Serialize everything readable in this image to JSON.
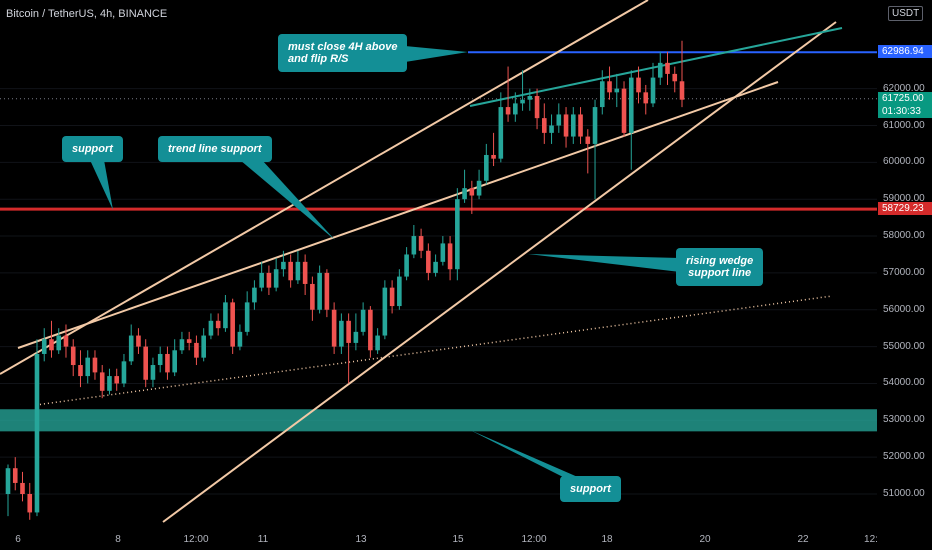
{
  "header": {
    "symbol": "Bitcoin / TetherUS, 4h, BINANCE",
    "currency": "USDT"
  },
  "colors": {
    "background": "#000000",
    "candle_up": "#26a69a",
    "candle_down": "#ef5350",
    "trendline": "#f2c9a6",
    "resistance": "#2962ff",
    "support_line": "#d42b2b",
    "support_zone": "#26a69a",
    "bubble": "#138f96"
  },
  "price_axis": {
    "ticks": [
      "51000.00",
      "52000.00",
      "53000.00",
      "54000.00",
      "55000.00",
      "56000.00",
      "57000.00",
      "58000.00",
      "59000.00",
      "60000.00",
      "61000.00",
      "62000.00"
    ],
    "labels": [
      {
        "text": "62986.94",
        "price": 62986.94,
        "color": "#2962ff"
      },
      {
        "text": "61725.00",
        "price": 61725.0,
        "color": "#089981"
      },
      {
        "text": "01:30:33",
        "price": 61370.0,
        "color": "#089981"
      },
      {
        "text": "58729.23",
        "price": 58729.23,
        "color": "#d42b2b"
      }
    ]
  },
  "time_axis": {
    "ticks": [
      "6",
      "8",
      "12:00",
      "11",
      "13",
      "15",
      "12:00",
      "18",
      "20",
      "22",
      "12:"
    ]
  },
  "annotations": {
    "must_close": {
      "line1": "must close 4H above",
      "line2": "and flip R/S"
    },
    "support_left": "support",
    "trend_line_support": "trend line support",
    "rising_wedge": {
      "line1": "rising wedge",
      "line2": "support line"
    },
    "support_bottom": "support"
  },
  "chart_data": {
    "type": "candlestick",
    "title": "Bitcoin / TetherUS, 4h, BINANCE",
    "ylim": [
      50300,
      63700
    ],
    "levels": {
      "resistance": 62986.94,
      "last_price": 61725.0,
      "support": 58729.23,
      "support_zone": [
        52700,
        53300
      ]
    },
    "candles": [
      [
        51000,
        51700,
        51800,
        50400
      ],
      [
        51700,
        51300,
        52000,
        51100
      ],
      [
        51300,
        51000,
        51600,
        50800
      ],
      [
        51000,
        50500,
        51300,
        50300
      ],
      [
        50500,
        54800,
        55200,
        50400
      ],
      [
        54800,
        55200,
        55500,
        54600
      ],
      [
        55200,
        54900,
        55700,
        54700
      ],
      [
        54900,
        55300,
        55500,
        54800
      ],
      [
        55300,
        55000,
        55600,
        54700
      ],
      [
        55000,
        54500,
        55200,
        54200
      ],
      [
        54500,
        54200,
        54900,
        53900
      ],
      [
        54200,
        54700,
        54900,
        54000
      ],
      [
        54700,
        54300,
        54900,
        54100
      ],
      [
        54300,
        53800,
        54500,
        53600
      ],
      [
        53800,
        54200,
        54400,
        53700
      ],
      [
        54200,
        54000,
        54400,
        53800
      ],
      [
        54000,
        54600,
        54800,
        53900
      ],
      [
        54600,
        55300,
        55600,
        54500
      ],
      [
        55300,
        55000,
        55500,
        54800
      ],
      [
        55000,
        54100,
        55200,
        53900
      ],
      [
        54100,
        54500,
        54700,
        53900
      ],
      [
        54500,
        54800,
        55000,
        54300
      ],
      [
        54800,
        54300,
        55000,
        54100
      ],
      [
        54300,
        54900,
        55200,
        54200
      ],
      [
        54900,
        55200,
        55400,
        54800
      ],
      [
        55200,
        55100,
        55400,
        54900
      ],
      [
        55100,
        54700,
        55300,
        54500
      ],
      [
        54700,
        55300,
        55500,
        54600
      ],
      [
        55300,
        55700,
        55900,
        55200
      ],
      [
        55700,
        55500,
        55900,
        55300
      ],
      [
        55500,
        56200,
        56400,
        55400
      ],
      [
        56200,
        55000,
        56300,
        54800
      ],
      [
        55000,
        55400,
        55600,
        54900
      ],
      [
        55400,
        56200,
        56500,
        55300
      ],
      [
        56200,
        56600,
        56800,
        56000
      ],
      [
        56600,
        57000,
        57300,
        56500
      ],
      [
        57000,
        56600,
        57200,
        56400
      ],
      [
        56600,
        57100,
        57400,
        56500
      ],
      [
        57100,
        57300,
        57600,
        56900
      ],
      [
        57300,
        56800,
        57500,
        56600
      ],
      [
        56800,
        57300,
        57600,
        56700
      ],
      [
        57300,
        56700,
        57500,
        56400
      ],
      [
        56700,
        56000,
        56900,
        55700
      ],
      [
        56000,
        57000,
        57200,
        55900
      ],
      [
        57000,
        56000,
        57100,
        55800
      ],
      [
        56000,
        55000,
        56200,
        54800
      ],
      [
        55000,
        55700,
        55900,
        54800
      ],
      [
        55700,
        55100,
        55900,
        54000
      ],
      [
        55100,
        55400,
        55900,
        54900
      ],
      [
        55400,
        56000,
        56200,
        55300
      ],
      [
        56000,
        54900,
        56100,
        54700
      ],
      [
        54900,
        55300,
        55500,
        54800
      ],
      [
        55300,
        56600,
        56800,
        55200
      ],
      [
        56600,
        56100,
        56800,
        55900
      ],
      [
        56100,
        56900,
        57100,
        56000
      ],
      [
        56900,
        57500,
        57700,
        56800
      ],
      [
        57500,
        58000,
        58300,
        57400
      ],
      [
        58000,
        57600,
        58200,
        57400
      ],
      [
        57600,
        57000,
        57800,
        56800
      ],
      [
        57000,
        57300,
        57500,
        56900
      ],
      [
        57300,
        57800,
        58000,
        57200
      ],
      [
        57800,
        57100,
        58000,
        56800
      ],
      [
        57100,
        59000,
        59300,
        56800
      ],
      [
        59000,
        59300,
        59800,
        58900
      ],
      [
        59300,
        59100,
        59500,
        58600
      ],
      [
        59100,
        59500,
        59800,
        59000
      ],
      [
        59500,
        60200,
        60500,
        59400
      ],
      [
        60200,
        60100,
        60800,
        59900
      ],
      [
        60100,
        61500,
        61900,
        60000
      ],
      [
        61500,
        61300,
        62600,
        61100
      ],
      [
        61300,
        61600,
        61900,
        61100
      ],
      [
        61600,
        61700,
        62500,
        61400
      ],
      [
        61700,
        61800,
        62000,
        61400
      ],
      [
        61800,
        61200,
        62000,
        60900
      ],
      [
        61200,
        60800,
        61600,
        60500
      ],
      [
        60800,
        61000,
        61300,
        60500
      ],
      [
        61000,
        61300,
        61600,
        60800
      ],
      [
        61300,
        60700,
        61500,
        60400
      ],
      [
        60700,
        61300,
        61500,
        60500
      ],
      [
        61300,
        60700,
        61500,
        60500
      ],
      [
        60700,
        60500,
        60900,
        59700
      ],
      [
        60500,
        61500,
        61700,
        59000
      ],
      [
        61500,
        62200,
        62500,
        61300
      ],
      [
        62200,
        61900,
        62600,
        61700
      ],
      [
        61900,
        62000,
        62400,
        61500
      ],
      [
        62000,
        60800,
        62200,
        60700
      ],
      [
        60800,
        62300,
        62500,
        59800
      ],
      [
        62300,
        61900,
        62600,
        61600
      ],
      [
        61900,
        61600,
        62100,
        61300
      ],
      [
        61600,
        62300,
        62700,
        61500
      ],
      [
        62300,
        62700,
        63000,
        62100
      ],
      [
        62700,
        62400,
        63000,
        62100
      ],
      [
        62400,
        62200,
        62600,
        61900
      ],
      [
        62200,
        61700,
        63300,
        61500
      ]
    ]
  }
}
